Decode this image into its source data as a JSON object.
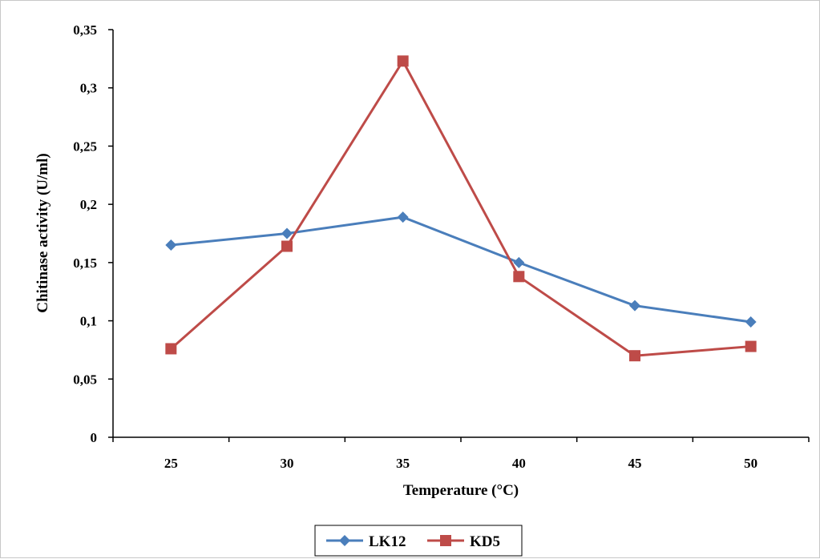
{
  "chart_data": {
    "type": "line",
    "title": "",
    "xlabel": "Temperature (°C)",
    "ylabel": "Chitinase activity (U/ml)",
    "categories": [
      "25",
      "30",
      "35",
      "40",
      "45",
      "50"
    ],
    "y_ticks": [
      "0",
      "0,05",
      "0,1",
      "0,15",
      "0,2",
      "0,25",
      "0,3",
      "0,35"
    ],
    "ylim": [
      0,
      0.35
    ],
    "grid": false,
    "legend_position": "bottom",
    "series": [
      {
        "name": "LK12",
        "color": "#4a7ebb",
        "marker": "diamond",
        "values": [
          0.165,
          0.175,
          0.189,
          0.15,
          0.113,
          0.099
        ]
      },
      {
        "name": "KD5",
        "color": "#be4b48",
        "marker": "square",
        "values": [
          0.076,
          0.164,
          0.323,
          0.138,
          0.07,
          0.078
        ]
      }
    ]
  }
}
